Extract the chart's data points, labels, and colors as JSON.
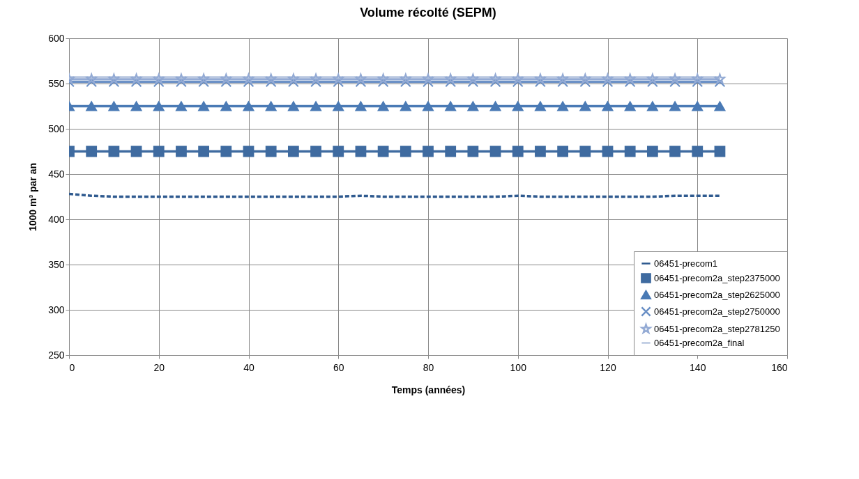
{
  "chart_data": {
    "type": "line",
    "title": "Volume récolté (SEPM)",
    "xlabel": "Temps (années)",
    "ylabel": "1000 m³ par an",
    "x": [
      0,
      5,
      10,
      15,
      20,
      25,
      30,
      35,
      40,
      45,
      50,
      55,
      60,
      65,
      70,
      75,
      80,
      85,
      90,
      95,
      100,
      105,
      110,
      115,
      120,
      125,
      130,
      135,
      140,
      145
    ],
    "series": [
      {
        "name": "06451-precom1",
        "color": "#2f5a8f",
        "line_style": "dashed",
        "marker": "none",
        "values": [
          428,
          426,
          425,
          425,
          425,
          425,
          425,
          425,
          425,
          425,
          425,
          425,
          425,
          426,
          425,
          425,
          425,
          425,
          425,
          425,
          426,
          425,
          425,
          425,
          425,
          425,
          425,
          426,
          426,
          426
        ]
      },
      {
        "name": "06451-precom2a_step2375000",
        "color": "#3f6ba0",
        "line_style": "solid",
        "marker": "square",
        "values": [
          475,
          475,
          475,
          475,
          475,
          475,
          475,
          475,
          475,
          475,
          475,
          475,
          475,
          475,
          475,
          475,
          475,
          475,
          475,
          475,
          475,
          475,
          475,
          475,
          475,
          475,
          475,
          475,
          475,
          475
        ]
      },
      {
        "name": "06451-precom2a_step2625000",
        "color": "#4a7ab5",
        "line_style": "solid",
        "marker": "triangle",
        "values": [
          525,
          525,
          525,
          525,
          525,
          525,
          525,
          525,
          525,
          525,
          525,
          525,
          525,
          525,
          525,
          525,
          525,
          525,
          525,
          525,
          525,
          525,
          525,
          525,
          525,
          525,
          525,
          525,
          525,
          525
        ]
      },
      {
        "name": "06451-precom2a_step2750000",
        "color": "#6c91c6",
        "line_style": "solid",
        "marker": "cross",
        "values": [
          552,
          552,
          552,
          552,
          552,
          552,
          552,
          552,
          552,
          552,
          552,
          552,
          552,
          552,
          552,
          552,
          552,
          552,
          552,
          552,
          552,
          552,
          552,
          552,
          552,
          552,
          552,
          552,
          552,
          552
        ]
      },
      {
        "name": "06451-precom2a_step2781250",
        "color": "#93aad4",
        "line_style": "solid",
        "marker": "star",
        "values": [
          555,
          555,
          555,
          555,
          555,
          555,
          555,
          555,
          555,
          555,
          555,
          555,
          555,
          555,
          555,
          555,
          555,
          555,
          555,
          555,
          555,
          555,
          555,
          555,
          555,
          555,
          555,
          555,
          555,
          555
        ]
      },
      {
        "name": "06451-precom2a_final",
        "color": "#b9c7e0",
        "line_style": "solid",
        "marker": "none",
        "values": [
          557,
          557,
          557,
          557,
          557,
          557,
          557,
          557,
          557,
          557,
          557,
          557,
          557,
          557,
          557,
          557,
          557,
          557,
          557,
          557,
          557,
          557,
          557,
          557,
          557,
          557,
          557,
          557,
          557,
          557
        ]
      }
    ],
    "xlim": [
      0,
      160
    ],
    "xticks": [
      0,
      20,
      40,
      60,
      80,
      100,
      120,
      140,
      160
    ],
    "ylim": [
      250,
      600
    ],
    "yticks": [
      250,
      300,
      350,
      400,
      450,
      500,
      550,
      600
    ],
    "grid": true,
    "legend": "bottom right"
  }
}
